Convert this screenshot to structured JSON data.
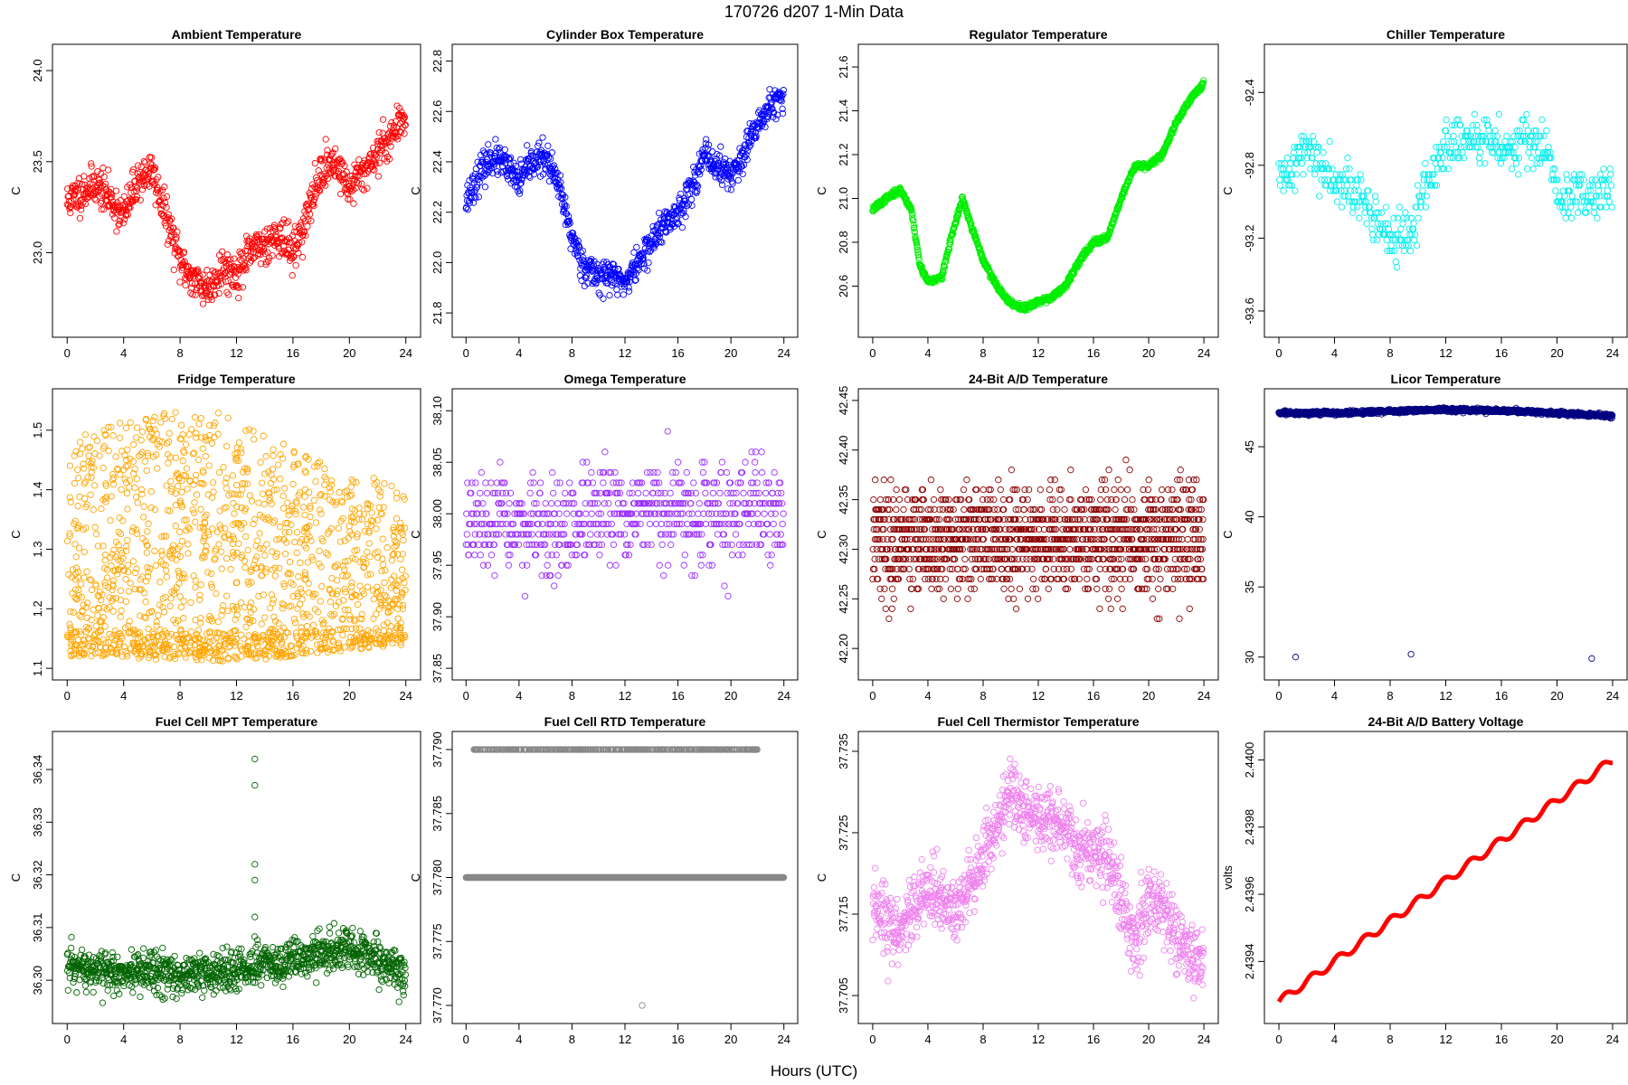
{
  "figure": {
    "title": "170726    d207    1-Min Data",
    "xlabel": "Hours (UTC)"
  },
  "chart_data": [
    {
      "type": "scatter",
      "title": "Ambient Temperature",
      "ylabel": "C",
      "color": "#ff0000",
      "xlim": [
        0,
        24
      ],
      "xticks": [
        0,
        4,
        8,
        12,
        16,
        20,
        24
      ],
      "ylim": [
        22.6,
        24.08
      ],
      "yticks": [
        23.0,
        23.5,
        24.0
      ],
      "ytick_labels": [
        "23.0",
        "23.5",
        "24.0"
      ],
      "trend": [
        [
          0,
          23.28
        ],
        [
          2,
          23.38
        ],
        [
          3,
          23.3
        ],
        [
          4,
          23.2
        ],
        [
          5,
          23.4
        ],
        [
          6,
          23.45
        ],
        [
          7,
          23.2
        ],
        [
          8,
          22.95
        ],
        [
          9,
          22.85
        ],
        [
          10,
          22.8
        ],
        [
          11,
          22.92
        ],
        [
          12,
          22.88
        ],
        [
          13,
          23.0
        ],
        [
          14,
          23.05
        ],
        [
          15,
          23.1
        ],
        [
          16,
          23.0
        ],
        [
          17,
          23.2
        ],
        [
          18,
          23.45
        ],
        [
          19,
          23.5
        ],
        [
          20,
          23.35
        ],
        [
          21,
          23.45
        ],
        [
          22,
          23.55
        ],
        [
          23,
          23.65
        ],
        [
          24,
          23.75
        ]
      ],
      "noise": 0.12,
      "n": 850,
      "seed": 11
    },
    {
      "type": "scatter",
      "title": "Cylinder Box Temperature",
      "ylabel": "C",
      "color": "#0000ff",
      "xlim": [
        0,
        24
      ],
      "xticks": [
        0,
        4,
        8,
        12,
        16,
        20,
        24
      ],
      "ylim": [
        21.75,
        22.82
      ],
      "yticks": [
        21.8,
        22.0,
        22.2,
        22.4,
        22.6,
        22.8
      ],
      "ytick_labels": [
        "21.8",
        "22.0",
        "22.2",
        "22.4",
        "22.6",
        "22.8"
      ],
      "trend": [
        [
          0,
          22.25
        ],
        [
          1,
          22.35
        ],
        [
          2,
          22.42
        ],
        [
          3,
          22.38
        ],
        [
          4,
          22.32
        ],
        [
          5,
          22.4
        ],
        [
          6,
          22.42
        ],
        [
          7,
          22.3
        ],
        [
          8,
          22.1
        ],
        [
          9,
          21.98
        ],
        [
          10,
          21.95
        ],
        [
          11,
          21.95
        ],
        [
          12,
          21.92
        ],
        [
          13,
          22.0
        ],
        [
          14,
          22.08
        ],
        [
          15,
          22.15
        ],
        [
          16,
          22.2
        ],
        [
          17,
          22.3
        ],
        [
          18,
          22.42
        ],
        [
          19,
          22.38
        ],
        [
          20,
          22.35
        ],
        [
          21,
          22.42
        ],
        [
          22,
          22.55
        ],
        [
          23,
          22.62
        ],
        [
          24,
          22.65
        ]
      ],
      "noise": 0.07,
      "n": 850,
      "seed": 23
    },
    {
      "type": "scatter",
      "title": "Regulator Temperature",
      "ylabel": "C",
      "color": "#00ee00",
      "xlim": [
        0,
        24
      ],
      "xticks": [
        0,
        4,
        8,
        12,
        16,
        20,
        24
      ],
      "ylim": [
        20.42,
        21.65
      ],
      "yticks": [
        20.6,
        20.8,
        21.0,
        21.2,
        21.4,
        21.6
      ],
      "ytick_labels": [
        "20.6",
        "20.8",
        "21.0",
        "21.2",
        "21.4",
        "21.6"
      ],
      "trend": [
        [
          0,
          20.95
        ],
        [
          1,
          21.0
        ],
        [
          2,
          21.04
        ],
        [
          2.8,
          20.95
        ],
        [
          3.4,
          20.7
        ],
        [
          4,
          20.62
        ],
        [
          5,
          20.64
        ],
        [
          5.6,
          20.8
        ],
        [
          6.5,
          21.0
        ],
        [
          7,
          20.9
        ],
        [
          8,
          20.72
        ],
        [
          9,
          20.6
        ],
        [
          10,
          20.52
        ],
        [
          11,
          20.5
        ],
        [
          12,
          20.53
        ],
        [
          13,
          20.55
        ],
        [
          14,
          20.6
        ],
        [
          15,
          20.72
        ],
        [
          16,
          20.8
        ],
        [
          17,
          20.82
        ],
        [
          18,
          21.0
        ],
        [
          19,
          21.15
        ],
        [
          20,
          21.15
        ],
        [
          21,
          21.2
        ],
        [
          22,
          21.35
        ],
        [
          23,
          21.45
        ],
        [
          24,
          21.53
        ]
      ],
      "noise": 0.015,
      "n": 1100,
      "seed": 37
    },
    {
      "type": "scatter",
      "title": "Chiller Temperature",
      "ylabel": "C",
      "color": "#00eeee",
      "xlim": [
        0,
        24
      ],
      "xticks": [
        0,
        4,
        8,
        12,
        16,
        20,
        24
      ],
      "ylim": [
        -93.68,
        -92.2
      ],
      "yticks": [
        -93.6,
        -93.2,
        -92.8,
        -92.4
      ],
      "ytick_labels": [
        "-93.6",
        "-93.2",
        "-92.8",
        "-92.4"
      ],
      "trend": [
        [
          0,
          -92.9
        ],
        [
          2,
          -92.7
        ],
        [
          3,
          -92.8
        ],
        [
          5,
          -92.9
        ],
        [
          6,
          -93.0
        ],
        [
          7,
          -93.1
        ],
        [
          8,
          -93.2
        ],
        [
          9.5,
          -93.2
        ],
        [
          10.5,
          -92.9
        ],
        [
          12,
          -92.7
        ],
        [
          14,
          -92.65
        ],
        [
          16,
          -92.7
        ],
        [
          18,
          -92.65
        ],
        [
          19.5,
          -92.75
        ],
        [
          20,
          -93.0
        ],
        [
          22,
          -92.95
        ],
        [
          24,
          -92.9
        ]
      ],
      "noise": 0.15,
      "n": 520,
      "step": 0.03,
      "seed": 41
    },
    {
      "type": "scatter",
      "title": "Fridge Temperature",
      "ylabel": "C",
      "color": "#ffa500",
      "xlim": [
        0,
        24
      ],
      "xticks": [
        0,
        4,
        8,
        12,
        16,
        20,
        24
      ],
      "ylim": [
        1.1,
        1.55
      ],
      "yticks": [
        1.1,
        1.2,
        1.3,
        1.4,
        1.5
      ],
      "ytick_labels": [
        "1.1",
        "1.2",
        "1.3",
        "1.4",
        "1.5"
      ],
      "fill": {
        "lower": [
          [
            0,
            1.12
          ],
          [
            12,
            1.11
          ],
          [
            24,
            1.14
          ]
        ],
        "upper": [
          [
            0,
            1.48
          ],
          [
            4,
            1.52
          ],
          [
            10,
            1.54
          ],
          [
            16,
            1.47
          ],
          [
            24,
            1.4
          ]
        ]
      },
      "n": 1600,
      "seed": 53
    },
    {
      "type": "scatter",
      "title": "Omega Temperature",
      "ylabel": "C",
      "color": "#9b30ff",
      "xlim": [
        0,
        24
      ],
      "xticks": [
        0,
        4,
        8,
        12,
        16,
        20,
        24
      ],
      "ylim": [
        37.85,
        38.11
      ],
      "yticks": [
        37.85,
        37.9,
        37.95,
        38.0,
        38.05,
        38.1
      ],
      "ytick_labels": [
        "37.85",
        "37.90",
        "37.95",
        "38.00",
        "38.05",
        "38.10"
      ],
      "trend": [
        [
          0,
          37.99
        ],
        [
          4,
          37.99
        ],
        [
          6,
          37.98
        ],
        [
          9,
          37.99
        ],
        [
          12,
          38.0
        ],
        [
          16,
          38.0
        ],
        [
          20,
          38.0
        ],
        [
          24,
          38.0
        ]
      ],
      "noise": 0.05,
      "n": 700,
      "step": 0.01,
      "seed": 67
    },
    {
      "type": "scatter",
      "title": "24-Bit A/D Temperature",
      "ylabel": "C",
      "color": "#8b0000",
      "xlim": [
        0,
        24
      ],
      "xticks": [
        0,
        4,
        8,
        12,
        16,
        20,
        24
      ],
      "ylim": [
        42.18,
        42.45
      ],
      "yticks": [
        42.2,
        42.25,
        42.3,
        42.35,
        42.4,
        42.45
      ],
      "ytick_labels": [
        "42.20",
        "42.25",
        "42.30",
        "42.35",
        "42.40",
        "42.45"
      ],
      "trend": [
        [
          0,
          42.31
        ],
        [
          24,
          42.31
        ]
      ],
      "noise": 0.06,
      "n": 1300,
      "step": 0.01,
      "seed": 79
    },
    {
      "type": "scatter",
      "title": "Licor Temperature",
      "ylabel": "C",
      "color": "#000080",
      "xlim": [
        0,
        24
      ],
      "xticks": [
        0,
        4,
        8,
        12,
        16,
        20,
        24
      ],
      "ylim": [
        29.2,
        48.3
      ],
      "yticks": [
        30,
        35,
        40,
        45
      ],
      "ytick_labels": [
        "30",
        "35",
        "40",
        "45"
      ],
      "trend": [
        [
          0,
          47.4
        ],
        [
          4,
          47.4
        ],
        [
          12,
          47.65
        ],
        [
          18,
          47.5
        ],
        [
          24,
          47.2
        ]
      ],
      "noise": 0.15,
      "n": 1200,
      "seed": 83,
      "outliers": [
        [
          1.2,
          30.0
        ],
        [
          9.5,
          30.2
        ],
        [
          22.5,
          29.9
        ]
      ]
    },
    {
      "type": "scatter",
      "title": "Fuel Cell MPT Temperature",
      "ylabel": "C",
      "color": "#006400",
      "xlim": [
        0,
        24
      ],
      "xticks": [
        0,
        4,
        8,
        12,
        16,
        20,
        24
      ],
      "ylim": [
        36.294,
        36.345
      ],
      "yticks": [
        36.3,
        36.31,
        36.32,
        36.33,
        36.34
      ],
      "ytick_labels": [
        "36.30",
        "36.31",
        "36.32",
        "36.33",
        "36.34"
      ],
      "trend": [
        [
          0,
          36.302
        ],
        [
          8,
          36.301
        ],
        [
          12,
          36.302
        ],
        [
          16,
          36.304
        ],
        [
          20,
          36.306
        ],
        [
          22,
          36.304
        ],
        [
          24,
          36.301
        ]
      ],
      "noise": 0.0045,
      "n": 1100,
      "seed": 97,
      "outliers": [
        [
          13.3,
          36.342
        ],
        [
          13.3,
          36.337
        ],
        [
          13.3,
          36.322
        ],
        [
          13.3,
          36.319
        ],
        [
          13.3,
          36.312
        ]
      ]
    },
    {
      "type": "scatter",
      "title": "Fuel Cell RTD Temperature",
      "ylabel": "C",
      "color": "#888888",
      "xlim": [
        0,
        24
      ],
      "xticks": [
        0,
        4,
        8,
        12,
        16,
        20,
        24
      ],
      "ylim": [
        37.7695,
        37.7905
      ],
      "yticks": [
        37.77,
        37.775,
        37.78,
        37.785,
        37.79
      ],
      "ytick_labels": [
        "37.770",
        "37.775",
        "37.780",
        "37.785",
        "37.790"
      ],
      "levels": [
        {
          "y": 37.78,
          "density": 1.0
        },
        {
          "y": 37.79,
          "density": 0.3
        }
      ],
      "n": 1440,
      "seed": 101,
      "outliers": [
        [
          13.3,
          37.77
        ]
      ]
    },
    {
      "type": "scatter",
      "title": "Fuel Cell Thermistor Temperature",
      "ylabel": "C",
      "color": "#ee82ee",
      "xlim": [
        0,
        24
      ],
      "xticks": [
        0,
        4,
        8,
        12,
        16,
        20,
        24
      ],
      "ylim": [
        37.703,
        37.736
      ],
      "yticks": [
        37.705,
        37.715,
        37.725,
        37.735
      ],
      "ytick_labels": [
        "37.705",
        "37.715",
        "37.725",
        "37.735"
      ],
      "trend": [
        [
          0,
          37.715
        ],
        [
          2,
          37.713
        ],
        [
          3,
          37.716
        ],
        [
          4,
          37.718
        ],
        [
          5,
          37.717
        ],
        [
          6,
          37.715
        ],
        [
          7,
          37.719
        ],
        [
          8,
          37.722
        ],
        [
          9,
          37.726
        ],
        [
          10,
          37.73
        ],
        [
          11,
          37.728
        ],
        [
          12,
          37.727
        ],
        [
          14,
          37.726
        ],
        [
          15,
          37.722
        ],
        [
          16,
          37.723
        ],
        [
          17,
          37.722
        ],
        [
          18,
          37.716
        ],
        [
          19,
          37.712
        ],
        [
          20,
          37.716
        ],
        [
          21,
          37.716
        ],
        [
          22,
          37.712
        ],
        [
          23,
          37.71
        ],
        [
          24,
          37.709
        ]
      ],
      "noise": 0.0045,
      "n": 1100,
      "seed": 113
    },
    {
      "type": "line",
      "title": "24-Bit A/D Battery Voltage",
      "ylabel": "volts",
      "color": "#ff0000",
      "xlim": [
        0,
        24
      ],
      "xticks": [
        0,
        4,
        8,
        12,
        16,
        20,
        24
      ],
      "ylim": [
        2.43925,
        2.44005
      ],
      "yticks": [
        2.4394,
        2.4396,
        2.4398,
        2.44
      ],
      "ytick_labels": [
        "2.4394",
        "2.4396",
        "2.4398",
        "2.4400"
      ],
      "start": [
        0,
        2.43928
      ],
      "end": [
        24,
        2.44
      ],
      "wiggle": 1.2e-05
    }
  ]
}
